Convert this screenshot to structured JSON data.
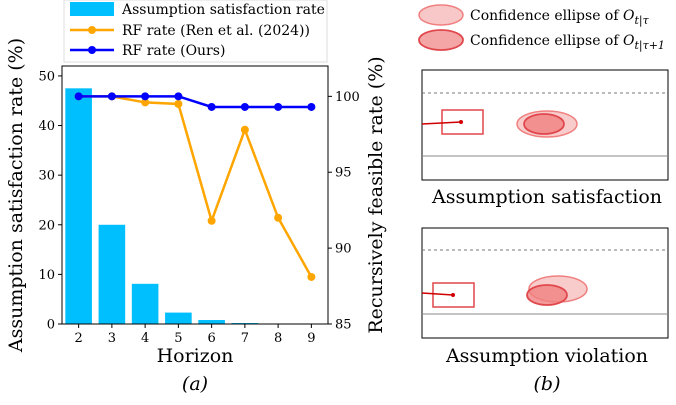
{
  "chart_data": [
    {
      "type": "bar+line",
      "panel_label": "(a)",
      "xlabel": "Horizon",
      "ylabel_left": "Assumption satisfaction rate (%)",
      "ylabel_right": "Recursively feasible rate (%)",
      "x": [
        2,
        3,
        4,
        5,
        6,
        7,
        8,
        9
      ],
      "ylim_left": [
        0,
        52
      ],
      "yticks_left": [
        0,
        10,
        20,
        30,
        40,
        50
      ],
      "ylim_right": [
        85,
        102
      ],
      "yticks_right": [
        85,
        90,
        95,
        100
      ],
      "bars": {
        "name": "Assumption satisfaction rate",
        "color": "#00bfff",
        "values": [
          47.5,
          20.0,
          8.1,
          2.3,
          0.8,
          0.2,
          0.0,
          0.0
        ]
      },
      "series": [
        {
          "name": "RF rate (Ren et al. (2024))",
          "color": "#ffa500",
          "marker": "circle",
          "values": [
            100.0,
            100.0,
            99.6,
            99.5,
            91.8,
            97.8,
            92.0,
            88.1
          ]
        },
        {
          "name": "RF rate (Ours)",
          "color": "#0000ff",
          "marker": "circle",
          "values": [
            100.0,
            100.0,
            100.0,
            100.0,
            99.3,
            99.3,
            99.3,
            99.3
          ]
        }
      ],
      "legend_position": "top"
    },
    {
      "type": "diagram",
      "panel_label": "(b)",
      "legend": [
        {
          "label": "Confidence ellipse of ",
          "math_main": "O",
          "math_sub": "t|τ",
          "style": "light",
          "color": "#f08080"
        },
        {
          "label": "Confidence ellipse of ",
          "math_main": "O",
          "math_sub": "t|τ+1",
          "style": "dark",
          "color": "#e0474c"
        }
      ],
      "panels": [
        {
          "caption": "Assumption satisfaction"
        },
        {
          "caption": "Assumption violation"
        }
      ]
    }
  ]
}
